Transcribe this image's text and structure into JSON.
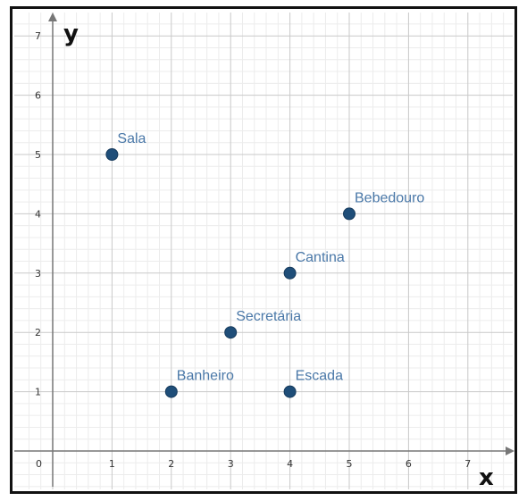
{
  "chart_data": {
    "type": "scatter",
    "xlabel": "x",
    "ylabel": "y",
    "xlim": [
      -0.2,
      7.5
    ],
    "ylim": [
      -0.5,
      7.3
    ],
    "x_ticks": [
      0,
      1,
      2,
      3,
      4,
      5,
      6,
      7
    ],
    "y_ticks": [
      1,
      2,
      3,
      4,
      5,
      6,
      7
    ],
    "origin_label": "0",
    "grid": true,
    "minor_grid_per_unit": 5,
    "colors": {
      "point": "#1f4e79",
      "label": "#4a78a8",
      "major_grid": "#c9c9c9",
      "minor_grid": "#ececec",
      "axis": "#777777"
    },
    "points": [
      {
        "label": "Sala",
        "x": 1,
        "y": 5
      },
      {
        "label": "Bebedouro",
        "x": 5,
        "y": 4
      },
      {
        "label": "Cantina",
        "x": 4,
        "y": 3
      },
      {
        "label": "Secretária",
        "x": 3,
        "y": 2
      },
      {
        "label": "Banheiro",
        "x": 2,
        "y": 1
      },
      {
        "label": "Escada",
        "x": 4,
        "y": 1
      }
    ]
  }
}
